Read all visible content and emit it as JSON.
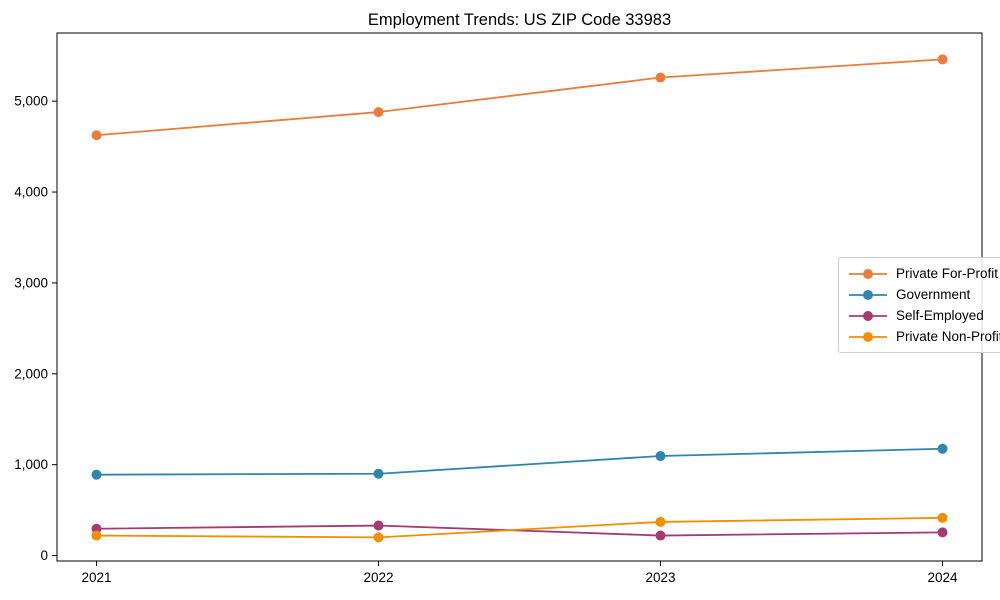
{
  "figure": {
    "background": "#ffffff",
    "axis_color": "#000000",
    "legend_border_color": "#cccccc"
  },
  "chart_data": {
    "type": "line",
    "title": "Employment Trends: US ZIP Code 33983",
    "xlabel": "",
    "ylabel": "",
    "x": [
      2021,
      2022,
      2023,
      2024
    ],
    "x_tick_labels": [
      "2021",
      "2022",
      "2023",
      "2024"
    ],
    "y_ticks": [
      0,
      1000,
      2000,
      3000,
      4000,
      5000
    ],
    "y_tick_labels": [
      "0",
      "1,000",
      "2,000",
      "3,000",
      "4,000",
      "5,000"
    ],
    "xlim": [
      2020.86,
      2024.14
    ],
    "ylim": [
      -60,
      5750
    ],
    "grid": false,
    "legend_position": "center-right",
    "marker": "circle",
    "series": [
      {
        "name": "Private For-Profit",
        "color": "#E87D3E",
        "values": [
          4625,
          4880,
          5260,
          5460
        ]
      },
      {
        "name": "Government",
        "color": "#2E86AB",
        "values": [
          890,
          900,
          1095,
          1175
        ]
      },
      {
        "name": "Self-Employed",
        "color": "#A23B72",
        "values": [
          295,
          330,
          220,
          255
        ]
      },
      {
        "name": "Private Non-Profit",
        "color": "#F18F01",
        "values": [
          220,
          200,
          370,
          415
        ]
      }
    ]
  }
}
